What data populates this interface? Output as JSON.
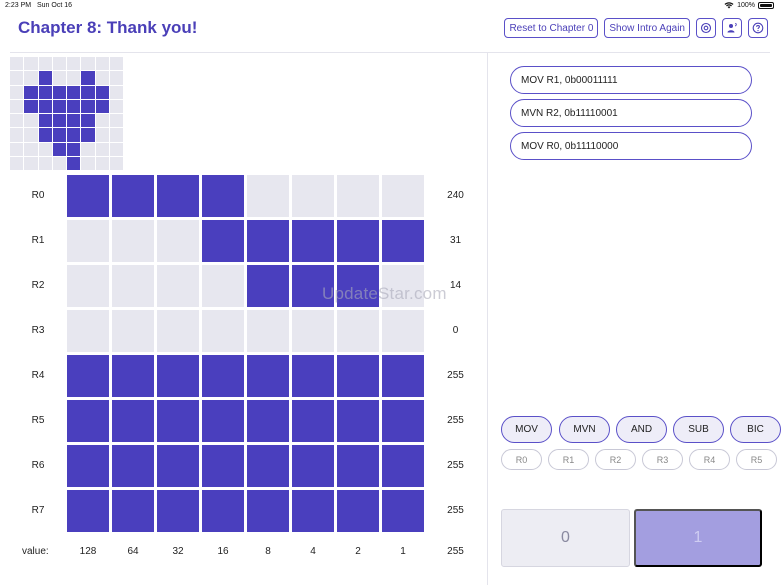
{
  "status_bar": {
    "time": "2:23 PM",
    "date": "Sun Oct 16",
    "battery": "100%"
  },
  "header": {
    "title": "Chapter 8: Thank you!",
    "reset_label": "Reset to Chapter 0",
    "intro_label": "Show Intro Again"
  },
  "instructions": [
    "MOV R1, 0b00011111",
    "MVN R2, 0b11110001",
    "MOV R0, 0b11110000"
  ],
  "preview_pattern": [
    [
      0,
      0,
      0,
      0,
      0,
      0,
      0,
      0
    ],
    [
      0,
      0,
      1,
      0,
      0,
      1,
      0,
      0
    ],
    [
      0,
      1,
      1,
      1,
      1,
      1,
      1,
      0
    ],
    [
      0,
      1,
      1,
      1,
      1,
      1,
      1,
      0
    ],
    [
      0,
      0,
      1,
      1,
      1,
      1,
      0,
      0
    ],
    [
      0,
      0,
      1,
      1,
      1,
      1,
      0,
      0
    ],
    [
      0,
      0,
      0,
      1,
      1,
      0,
      0,
      0
    ],
    [
      0,
      0,
      0,
      0,
      1,
      0,
      0,
      0
    ]
  ],
  "registers": [
    {
      "name": "R0",
      "value": "240",
      "bits": [
        1,
        1,
        1,
        1,
        0,
        0,
        0,
        0
      ]
    },
    {
      "name": "R1",
      "value": "31",
      "bits": [
        0,
        0,
        0,
        1,
        1,
        1,
        1,
        1
      ]
    },
    {
      "name": "R2",
      "value": "14",
      "bits": [
        0,
        0,
        0,
        0,
        1,
        1,
        1,
        0
      ]
    },
    {
      "name": "R3",
      "value": "0",
      "bits": [
        0,
        0,
        0,
        0,
        0,
        0,
        0,
        0
      ]
    },
    {
      "name": "R4",
      "value": "255",
      "bits": [
        1,
        1,
        1,
        1,
        1,
        1,
        1,
        1
      ]
    },
    {
      "name": "R5",
      "value": "255",
      "bits": [
        1,
        1,
        1,
        1,
        1,
        1,
        1,
        1
      ]
    },
    {
      "name": "R6",
      "value": "255",
      "bits": [
        1,
        1,
        1,
        1,
        1,
        1,
        1,
        1
      ]
    },
    {
      "name": "R7",
      "value": "255",
      "bits": [
        1,
        1,
        1,
        1,
        1,
        1,
        1,
        1
      ]
    }
  ],
  "column_values": [
    "128",
    "64",
    "32",
    "16",
    "8",
    "4",
    "2",
    "1"
  ],
  "value_label": "value:",
  "value_total": "255",
  "opcodes": [
    "MOV",
    "MVN",
    "AND",
    "SUB",
    "BIC"
  ],
  "register_buttons": [
    "R0",
    "R1",
    "R2",
    "R3",
    "R4",
    "R5"
  ],
  "bit_buttons": {
    "zero": "0",
    "one": "1"
  },
  "watermark": "UpdateStar.com",
  "colors": {
    "accent": "#4a3fbe",
    "cell_off": "#e7e7ef",
    "bit1_bg": "#a39ee0"
  }
}
